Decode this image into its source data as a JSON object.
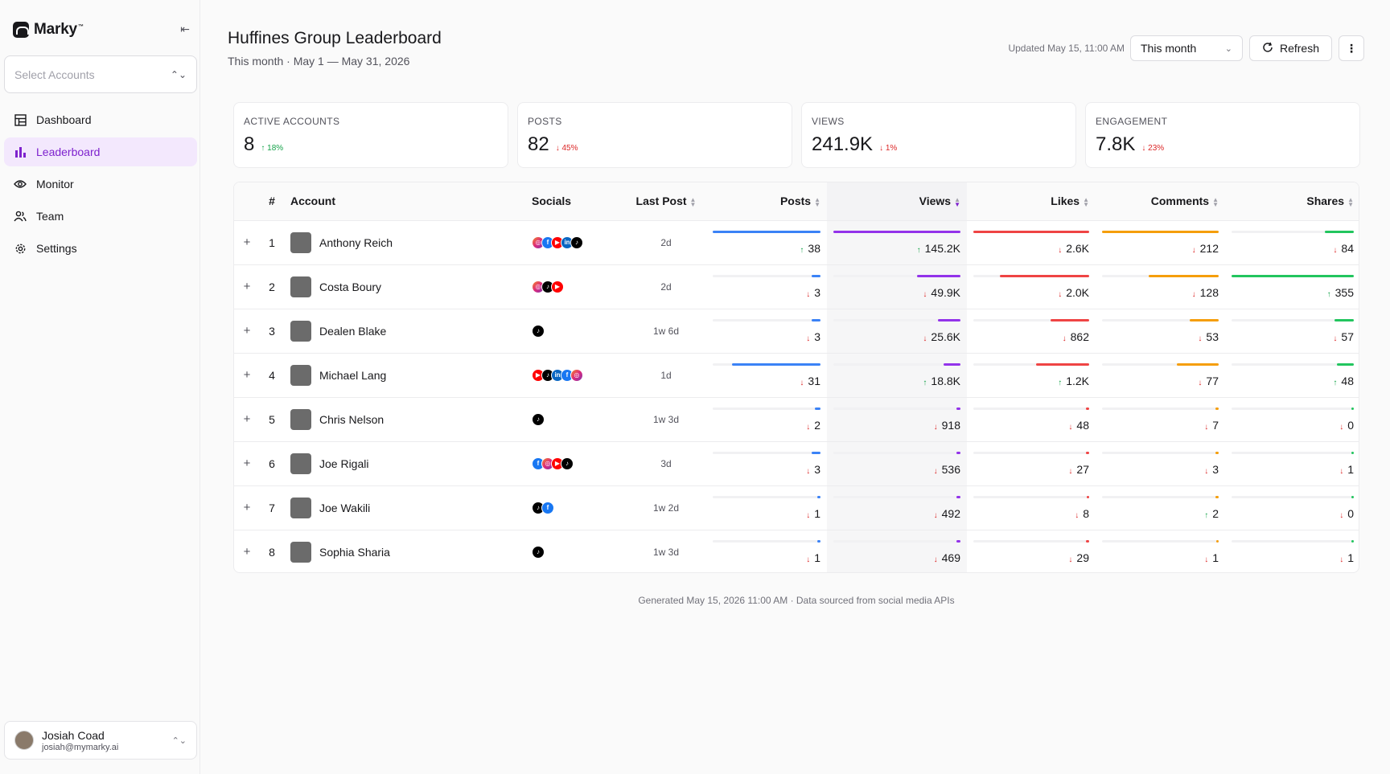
{
  "app": {
    "name": "Marky",
    "tm": "™"
  },
  "sidebar": {
    "select_placeholder": "Select Accounts",
    "items": [
      {
        "label": "Dashboard",
        "icon": "dashboard-icon"
      },
      {
        "label": "Leaderboard",
        "icon": "bar-chart-icon",
        "active": true
      },
      {
        "label": "Monitor",
        "icon": "eye-icon"
      },
      {
        "label": "Team",
        "icon": "team-icon"
      },
      {
        "label": "Settings",
        "icon": "gear-icon"
      }
    ],
    "user": {
      "name": "Josiah Coad",
      "email": "josiah@mymarky.ai"
    }
  },
  "header": {
    "title": "Huffines Group Leaderboard",
    "subtitle": "This month · May 1 — May 31, 2026",
    "updated": "Updated May 15, 11:00 AM",
    "period": "This month",
    "refresh_label": "Refresh"
  },
  "stats": [
    {
      "label": "ACTIVE ACCOUNTS",
      "value": "8",
      "delta": "18%",
      "dir": "up"
    },
    {
      "label": "POSTS",
      "value": "82",
      "delta": "45%",
      "dir": "down"
    },
    {
      "label": "VIEWS",
      "value": "241.9K",
      "delta": "1%",
      "dir": "down"
    },
    {
      "label": "ENGAGEMENT",
      "value": "7.8K",
      "delta": "23%",
      "dir": "down"
    }
  ],
  "table": {
    "columns": [
      "#",
      "Account",
      "Socials",
      "Last Post",
      "Posts",
      "Views",
      "Likes",
      "Comments",
      "Shares"
    ],
    "colors": {
      "posts": "#3b82f6",
      "views": "#9333ea",
      "likes": "#ef4444",
      "comments": "#f59e0b",
      "shares": "#22c55e"
    },
    "rows": [
      {
        "rank": "1",
        "name": "Anthony Reich",
        "socials": [
          "instagram",
          "facebook",
          "youtube",
          "linkedin",
          "tiktok"
        ],
        "last_post": "2d",
        "posts": {
          "v": "38",
          "d": "up",
          "f": 1.0
        },
        "views": {
          "v": "145.2K",
          "d": "up",
          "f": 1.0
        },
        "likes": {
          "v": "2.6K",
          "d": "down",
          "f": 1.0
        },
        "comments": {
          "v": "212",
          "d": "down",
          "f": 1.0
        },
        "shares": {
          "v": "84",
          "d": "down",
          "f": 0.24
        }
      },
      {
        "rank": "2",
        "name": "Costa Boury",
        "socials": [
          "instagram",
          "tiktok",
          "youtube"
        ],
        "last_post": "2d",
        "posts": {
          "v": "3",
          "d": "down",
          "f": 0.08
        },
        "views": {
          "v": "49.9K",
          "d": "down",
          "f": 0.34
        },
        "likes": {
          "v": "2.0K",
          "d": "down",
          "f": 0.77
        },
        "comments": {
          "v": "128",
          "d": "down",
          "f": 0.6
        },
        "shares": {
          "v": "355",
          "d": "up",
          "f": 1.0
        }
      },
      {
        "rank": "3",
        "name": "Dealen Blake",
        "socials": [
          "tiktok"
        ],
        "last_post": "1w 6d",
        "posts": {
          "v": "3",
          "d": "down",
          "f": 0.08
        },
        "views": {
          "v": "25.6K",
          "d": "down",
          "f": 0.18
        },
        "likes": {
          "v": "862",
          "d": "down",
          "f": 0.33
        },
        "comments": {
          "v": "53",
          "d": "down",
          "f": 0.25
        },
        "shares": {
          "v": "57",
          "d": "down",
          "f": 0.16
        }
      },
      {
        "rank": "4",
        "name": "Michael Lang",
        "socials": [
          "youtube",
          "tiktok",
          "linkedin",
          "facebook",
          "instagram"
        ],
        "last_post": "1d",
        "posts": {
          "v": "31",
          "d": "down",
          "f": 0.82
        },
        "views": {
          "v": "18.8K",
          "d": "up",
          "f": 0.13
        },
        "likes": {
          "v": "1.2K",
          "d": "up",
          "f": 0.46
        },
        "comments": {
          "v": "77",
          "d": "down",
          "f": 0.36
        },
        "shares": {
          "v": "48",
          "d": "up",
          "f": 0.14
        }
      },
      {
        "rank": "5",
        "name": "Chris Nelson",
        "socials": [
          "tiktok"
        ],
        "last_post": "1w 3d",
        "posts": {
          "v": "2",
          "d": "down",
          "f": 0.05
        },
        "views": {
          "v": "918",
          "d": "down",
          "f": 0.01
        },
        "likes": {
          "v": "48",
          "d": "down",
          "f": 0.02
        },
        "comments": {
          "v": "7",
          "d": "down",
          "f": 0.03
        },
        "shares": {
          "v": "0",
          "d": "down",
          "f": 0.0
        }
      },
      {
        "rank": "6",
        "name": "Joe Rigali",
        "socials": [
          "facebook",
          "instagram",
          "youtube",
          "tiktok"
        ],
        "last_post": "3d",
        "posts": {
          "v": "3",
          "d": "down",
          "f": 0.08
        },
        "views": {
          "v": "536",
          "d": "down",
          "f": 0.01
        },
        "likes": {
          "v": "27",
          "d": "down",
          "f": 0.01
        },
        "comments": {
          "v": "3",
          "d": "down",
          "f": 0.01
        },
        "shares": {
          "v": "1",
          "d": "down",
          "f": 0.0
        }
      },
      {
        "rank": "7",
        "name": "Joe Wakili",
        "socials": [
          "tiktok",
          "facebook"
        ],
        "last_post": "1w 2d",
        "posts": {
          "v": "1",
          "d": "down",
          "f": 0.03
        },
        "views": {
          "v": "492",
          "d": "down",
          "f": 0.01
        },
        "likes": {
          "v": "8",
          "d": "down",
          "f": 0.0
        },
        "comments": {
          "v": "2",
          "d": "up",
          "f": 0.01
        },
        "shares": {
          "v": "0",
          "d": "down",
          "f": 0.0
        }
      },
      {
        "rank": "8",
        "name": "Sophia Sharia",
        "socials": [
          "tiktok"
        ],
        "last_post": "1w 3d",
        "posts": {
          "v": "1",
          "d": "down",
          "f": 0.03
        },
        "views": {
          "v": "469",
          "d": "down",
          "f": 0.01
        },
        "likes": {
          "v": "29",
          "d": "down",
          "f": 0.01
        },
        "comments": {
          "v": "1",
          "d": "down",
          "f": 0.0
        },
        "shares": {
          "v": "1",
          "d": "down",
          "f": 0.0
        }
      }
    ]
  },
  "footer": "Generated May 15, 2026 11:00 AM · Data sourced from social media APIs"
}
